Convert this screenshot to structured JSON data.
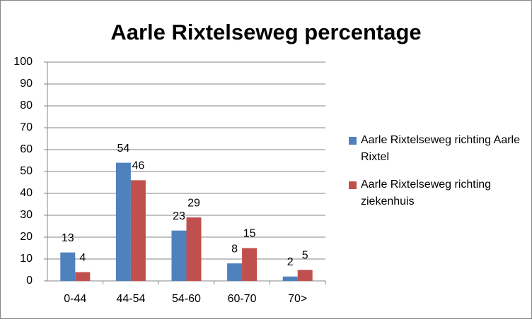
{
  "chart_data": {
    "type": "bar",
    "title": "Aarle Rixtelseweg percentage",
    "categories": [
      "0-44",
      "44-54",
      "54-60",
      "60-70",
      "70>"
    ],
    "series": [
      {
        "name": "Aarle Rixtelseweg richting Aarle Rixtel",
        "color": "#4f81bd",
        "values": [
          13,
          54,
          23,
          8,
          2
        ]
      },
      {
        "name": "Aarle Rixtelseweg richting ziekenhuis",
        "color": "#c0504d",
        "values": [
          4,
          46,
          29,
          15,
          5
        ]
      }
    ],
    "ylim": [
      0,
      100
    ],
    "yticks": [
      0,
      10,
      20,
      30,
      40,
      50,
      60,
      70,
      80,
      90,
      100
    ],
    "grid": true,
    "legend": "right"
  }
}
